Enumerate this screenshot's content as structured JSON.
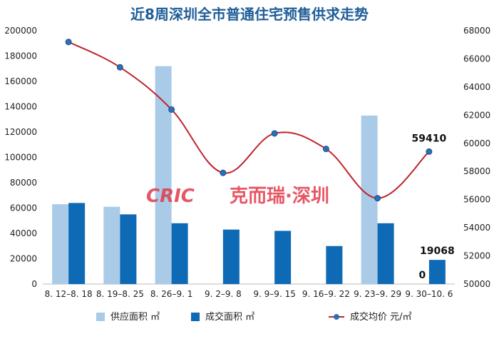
{
  "chart_data": {
    "type": "bar",
    "title": "近8周深圳全市普通住宅预售供求走势",
    "categories": [
      "8.12-8.18",
      "8.19-8.25",
      "8.26-9.1",
      "9.2-9.8",
      "9.9-9.15",
      "9.16-9.22",
      "9.23-9.29",
      "9.30-10.6"
    ],
    "category_labels": [
      "8. 12–8. 18",
      "8. 19–8. 25",
      "8. 26–9. 1",
      "9. 2–9. 8",
      "9. 9–9. 15",
      "9. 16–9. 22",
      "9. 23–9. 29",
      "9. 30–10. 6"
    ],
    "series": [
      {
        "name": "供应面积",
        "unit": "㎡",
        "type": "bar",
        "axis": "left",
        "color": "#a9cbe8",
        "values": [
          63000,
          61000,
          172000,
          0,
          0,
          0,
          133000,
          0
        ]
      },
      {
        "name": "成交面积",
        "unit": "㎡",
        "type": "bar",
        "axis": "left",
        "color": "#0f6ab5",
        "values": [
          64000,
          55000,
          48000,
          43000,
          42000,
          30000,
          48000,
          19068
        ]
      },
      {
        "name": "成交均价",
        "unit": "元/㎡",
        "type": "line",
        "axis": "right",
        "color": "#c0242b",
        "marker_color": "#2e6fb4",
        "values": [
          67200,
          65400,
          62400,
          57900,
          60700,
          59600,
          56100,
          59410
        ]
      }
    ],
    "y_left": {
      "min": 0,
      "max": 200000,
      "step": 20000,
      "ticks": [
        "0",
        "20000",
        "40000",
        "60000",
        "80000",
        "100000",
        "120000",
        "140000",
        "160000",
        "180000",
        "200000"
      ]
    },
    "y_right": {
      "min": 50000,
      "max": 68000,
      "step": 2000,
      "ticks": [
        "50000",
        "52000",
        "54000",
        "56000",
        "58000",
        "60000",
        "62000",
        "64000",
        "66000",
        "68000"
      ]
    },
    "data_labels": [
      {
        "series": 1,
        "index": 7,
        "text": "19068"
      },
      {
        "series": 0,
        "index": 7,
        "text": "0"
      },
      {
        "series": 2,
        "index": 7,
        "text": "59410"
      }
    ],
    "legend": {
      "position": "bottom",
      "items": [
        {
          "label": "供应面积 ㎡",
          "color": "#a9cbe8",
          "kind": "bar"
        },
        {
          "label": "成交面积 ㎡",
          "color": "#0f6ab5",
          "kind": "bar"
        },
        {
          "label": "成交均价 元/㎡",
          "color": "#c0242b",
          "kind": "line"
        }
      ]
    },
    "grid": false
  },
  "watermark": {
    "brand": "CRIC",
    "text": "克而瑞·深圳",
    "color": "#e23a49"
  }
}
